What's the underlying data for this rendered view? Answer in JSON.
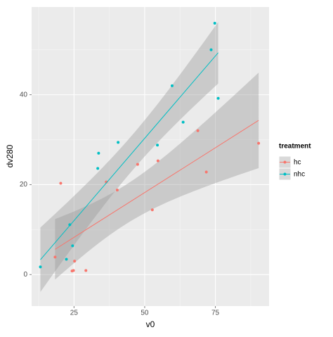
{
  "chart_data": {
    "type": "scatter",
    "x_label": "v0",
    "y_label": "dv280",
    "legend_title": "treatment",
    "legend_position": "right",
    "grid": true,
    "smooth": "lm",
    "xlim": [
      10,
      94
    ],
    "ylim": [
      -7,
      59.5
    ],
    "xticks": [
      25,
      50,
      75
    ],
    "yticks": [
      0,
      20,
      40
    ],
    "series": [
      {
        "name": "hc",
        "color": "#F8766D",
        "x": [
          20.3,
          18.3,
          24.8,
          25.2,
          24.3,
          29.2,
          36.4,
          40.3,
          47.5,
          52.7,
          54.7,
          68.8,
          71.8,
          90.3
        ],
        "values": [
          20.3,
          3.9,
          0.9,
          3.0,
          0.8,
          0.9,
          20.6,
          18.8,
          24.5,
          14.4,
          25.3,
          32.0,
          22.8,
          29.2
        ]
      },
      {
        "name": "nhc",
        "color": "#00BFC4",
        "x": [
          13.1,
          22.3,
          23.5,
          24.5,
          33.4,
          33.7,
          40.6,
          54.5,
          59.7,
          63.6,
          73.5,
          74.8,
          76.0
        ],
        "values": [
          1.7,
          3.4,
          11.1,
          6.4,
          23.6,
          27.0,
          29.4,
          28.8,
          42.0,
          33.9,
          50.0,
          55.9,
          39.2
        ]
      }
    ]
  }
}
